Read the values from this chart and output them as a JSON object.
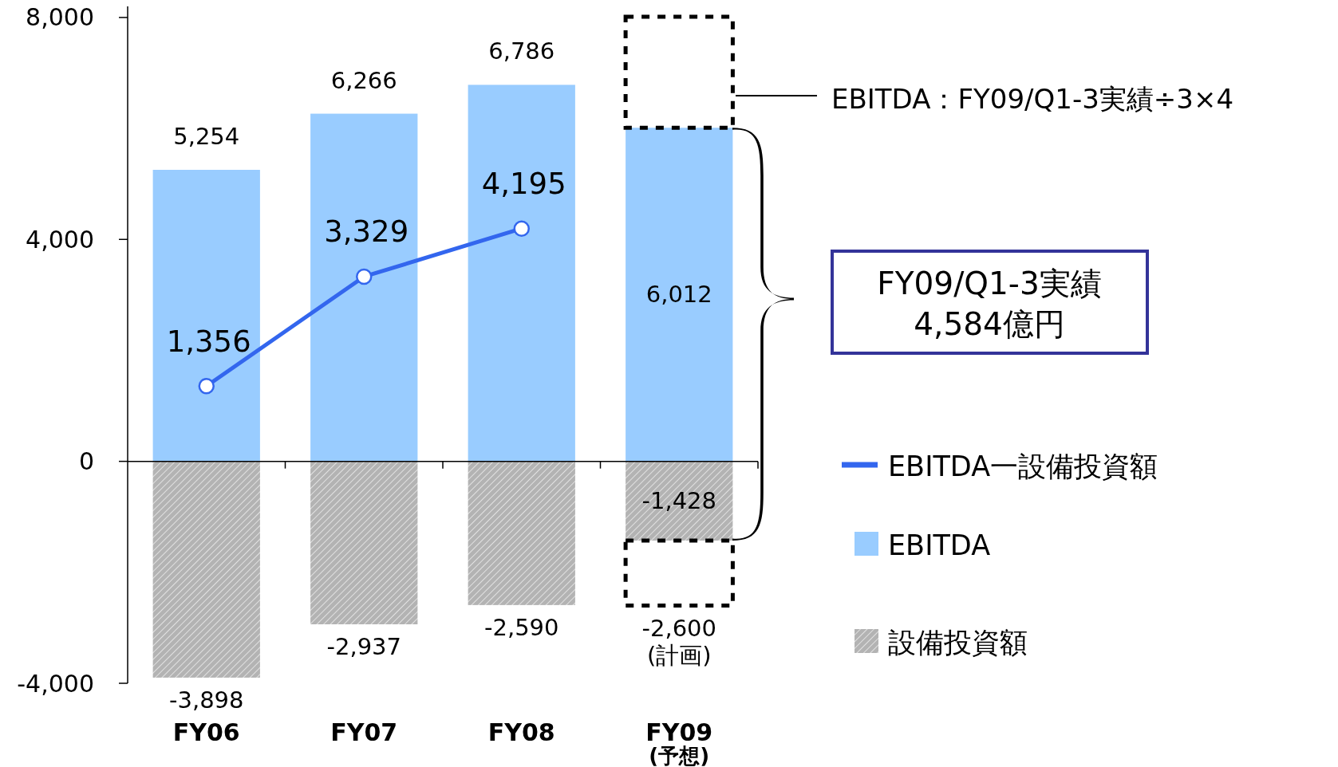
{
  "chart_data": {
    "type": "bar",
    "stacked": true,
    "categories": [
      "FY06",
      "FY07",
      "FY08",
      "FY09 (予想)"
    ],
    "ylim": [
      -4000,
      8200
    ],
    "yticks": [
      {
        "value": 8000,
        "label": "8,000"
      },
      {
        "value": 4000,
        "label": "4,000"
      },
      {
        "value": 0,
        "label": "0"
      },
      {
        "value": -4000,
        "label": "-4,000"
      }
    ],
    "series": [
      {
        "name": "EBITDA一設備投資額",
        "type": "line",
        "color": "#3366ee",
        "marker": "circle",
        "values": [
          1356,
          3329,
          4195,
          null
        ],
        "value_labels": [
          "1,356",
          "3,329",
          "4,195",
          null
        ]
      },
      {
        "name": "EBITDA",
        "color": "#99ccff",
        "values": [
          5254,
          6266,
          6786,
          6012
        ],
        "value_labels": [
          "5,254",
          "6,266",
          "6,786",
          "6,012"
        ]
      },
      {
        "name": "設備投資額",
        "color": "#b3b3b3",
        "values": [
          -3898,
          -2937,
          -2590,
          -1428
        ],
        "value_labels": [
          "-3,898",
          "-2,937",
          "-2,590",
          "-1,428"
        ]
      },
      {
        "color": "#000000",
        "line_style": "dashed",
        "base": [
          null,
          null,
          null,
          6012
        ],
        "values": [
          null,
          null,
          null,
          2000
        ]
      },
      {
        "color": "#000000",
        "line_style": "dashed",
        "base": [
          null,
          null,
          null,
          -1428
        ],
        "values": [
          null,
          null,
          null,
          -1172
        ],
        "value_labels": [
          null,
          null,
          null,
          "-2,600 (計画)"
        ]
      }
    ],
    "annotations": [
      "EBITDA：FY09/Q1-3実績÷3×4",
      "FY09/Q1-3実績 4,584億円"
    ],
    "legend": "right",
    "grid": false
  }
}
